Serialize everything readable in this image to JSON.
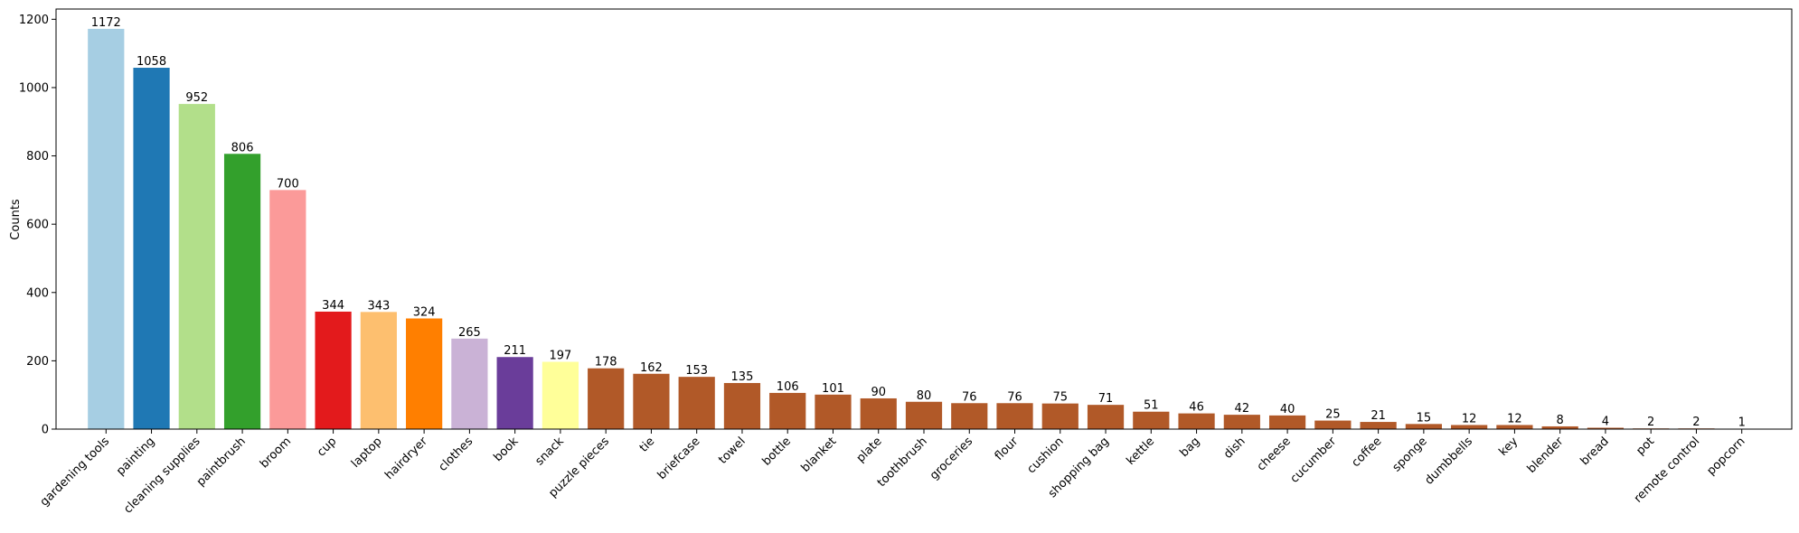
{
  "chart_data": {
    "type": "bar",
    "title": "",
    "xlabel": "",
    "ylabel": "Counts",
    "ylim": [
      0,
      1230
    ],
    "yticks": [
      0,
      200,
      400,
      600,
      800,
      1000,
      1200
    ],
    "grid": false,
    "legend": "none",
    "categories": [
      "gardening tools",
      "painting",
      "cleaning supplies",
      "paintbrush",
      "broom",
      "cup",
      "laptop",
      "hairdryer",
      "clothes",
      "book",
      "snack",
      "puzzle pieces",
      "tie",
      "briefcase",
      "towel",
      "bottle",
      "blanket",
      "plate",
      "toothbrush",
      "groceries",
      "flour",
      "cushion",
      "shopping bag",
      "kettle",
      "bag",
      "dish",
      "cheese",
      "cucumber",
      "coffee",
      "sponge",
      "dumbbells",
      "key",
      "blender",
      "bread",
      "pot",
      "remote control",
      "popcorn"
    ],
    "values": [
      1172,
      1058,
      952,
      806,
      700,
      344,
      343,
      324,
      265,
      211,
      197,
      178,
      162,
      153,
      135,
      106,
      101,
      90,
      80,
      76,
      76,
      75,
      71,
      51,
      46,
      42,
      40,
      25,
      21,
      15,
      12,
      12,
      8,
      4,
      2,
      2,
      1
    ],
    "colors": [
      "#a6cee3",
      "#1f78b4",
      "#b2df8a",
      "#33a02c",
      "#fb9a99",
      "#e31a1c",
      "#fdbf6f",
      "#ff7f00",
      "#cab2d6",
      "#6a3d9a",
      "#ffff99",
      "#b15928",
      "#b15928",
      "#b15928",
      "#b15928",
      "#b15928",
      "#b15928",
      "#b15928",
      "#b15928",
      "#b15928",
      "#b15928",
      "#b15928",
      "#b15928",
      "#b15928",
      "#b15928",
      "#b15928",
      "#b15928",
      "#b15928",
      "#b15928",
      "#b15928",
      "#b15928",
      "#b15928",
      "#b15928",
      "#b15928",
      "#b15928",
      "#b15928",
      "#b15928"
    ]
  }
}
